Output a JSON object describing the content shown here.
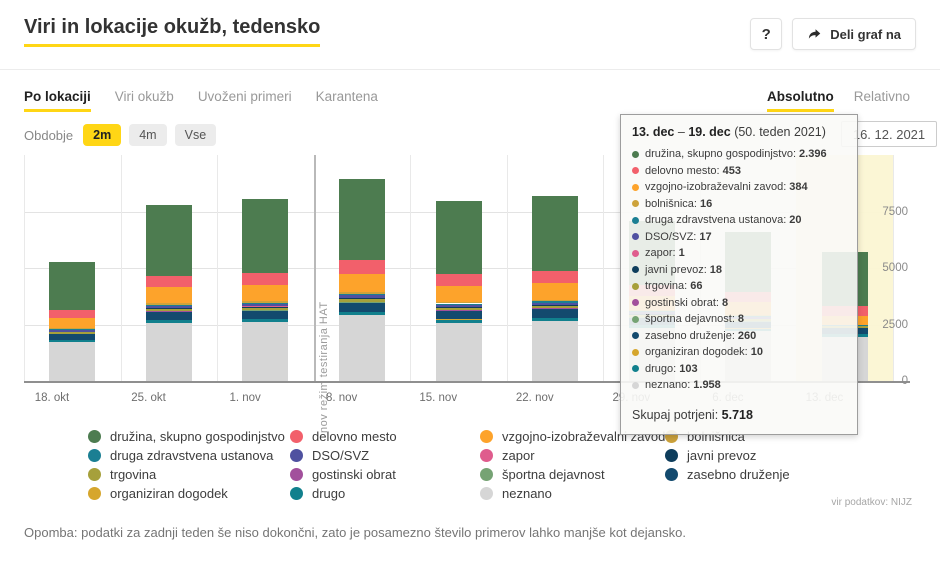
{
  "header": {
    "title": "Viri in lokacije okužb, tedensko",
    "help_label": "?",
    "share_label": "Deli graf na"
  },
  "tabs": {
    "left": [
      {
        "label": "Po lokaciji",
        "active": true
      },
      {
        "label": "Viri okužb",
        "active": false
      },
      {
        "label": "Uvoženi primeri",
        "active": false
      },
      {
        "label": "Karantena",
        "active": false
      }
    ],
    "right": [
      {
        "label": "Absolutno",
        "active": true
      },
      {
        "label": "Relativno",
        "active": false
      }
    ]
  },
  "period": {
    "label": "Obdobje",
    "options": [
      "2m",
      "4m",
      "Vse"
    ],
    "selected": "2m"
  },
  "date_input": {
    "value": "16. 12. 2021"
  },
  "accent_color": "#ffd615",
  "chart_data": {
    "type": "bar",
    "stacked": true,
    "title": "Viri in lokacije okužb, tedensko",
    "xlabel": "",
    "ylabel": "",
    "ylim": [
      0,
      10000
    ],
    "yticks": [
      0,
      2500,
      5000,
      7500
    ],
    "grid": true,
    "legend_position": "bottom",
    "categories": [
      "18. okt",
      "25. okt",
      "1. nov",
      "8. nov",
      "15. nov",
      "22. nov",
      "29. nov",
      "6. dec",
      "13. dec"
    ],
    "series_bottom_to_top": [
      {
        "name": "neznano",
        "color": "#d6d6d6",
        "values": [
          1725,
          2550,
          2600,
          2900,
          2580,
          2650,
          2350,
          2200,
          1958
        ]
      },
      {
        "name": "drugo",
        "color": "#11808d",
        "values": [
          90,
          130,
          135,
          150,
          135,
          140,
          125,
          115,
          103
        ]
      },
      {
        "name": "organiziran dogodek",
        "color": "#d6a62d",
        "values": [
          15,
          20,
          20,
          25,
          20,
          20,
          15,
          12,
          10
        ]
      },
      {
        "name": "zasebno druženje",
        "color": "#134a6e",
        "values": [
          230,
          340,
          355,
          390,
          350,
          360,
          320,
          300,
          260
        ]
      },
      {
        "name": "športna dejavnost",
        "color": "#76a374",
        "values": [
          15,
          20,
          20,
          25,
          20,
          20,
          15,
          12,
          8
        ]
      },
      {
        "name": "gostinski obrat",
        "color": "#a2509c",
        "values": [
          15,
          20,
          20,
          25,
          20,
          20,
          15,
          12,
          8
        ]
      },
      {
        "name": "trgovina",
        "color": "#a6a03b",
        "values": [
          60,
          90,
          95,
          105,
          95,
          95,
          85,
          75,
          66
        ]
      },
      {
        "name": "javni prevoz",
        "color": "#0e3d5c",
        "values": [
          30,
          45,
          50,
          55,
          50,
          50,
          40,
          35,
          18
        ]
      },
      {
        "name": "zapor",
        "color": "#df5c8d",
        "values": [
          5,
          5,
          5,
          5,
          5,
          5,
          3,
          2,
          1
        ]
      },
      {
        "name": "DSO/SVZ",
        "color": "#4f51a0",
        "values": [
          60,
          90,
          95,
          105,
          95,
          95,
          80,
          70,
          17
        ]
      },
      {
        "name": "druga zdravstvena ustanova",
        "color": "#1b7f93",
        "values": [
          40,
          60,
          60,
          70,
          60,
          65,
          50,
          40,
          20
        ]
      },
      {
        "name": "bolnišnica",
        "color": "#cda33b",
        "values": [
          45,
          65,
          70,
          75,
          65,
          70,
          55,
          45,
          16
        ]
      },
      {
        "name": "vzgojno-izobraževalni zavod",
        "color": "#fda32b",
        "values": [
          480,
          710,
          730,
          810,
          720,
          740,
          620,
          560,
          384
        ]
      },
      {
        "name": "delovno mesto",
        "color": "#f2606b",
        "values": [
          350,
          520,
          545,
          600,
          530,
          550,
          480,
          460,
          453
        ]
      },
      {
        "name": "družina, skupno gospodinjstvo",
        "color": "#4d7c50",
        "values": [
          2110,
          3135,
          3250,
          3590,
          3205,
          3300,
          2847,
          2662,
          2396
        ]
      }
    ],
    "annotation": {
      "text": "nov režim testiranja HAT",
      "boundary_index": 3
    },
    "highlight_last_slot": {
      "slot_index": 8,
      "color": "#fbf5d3"
    }
  },
  "tooltip": {
    "title_bold_from": "13. dec",
    "title_bold_to": "19. dec",
    "title_rest": "(50. teden 2021)",
    "items": [
      {
        "label": "družina, skupno gospodinjstvo",
        "value": "2.396",
        "color": "#4d7c50"
      },
      {
        "label": "delovno mesto",
        "value": "453",
        "color": "#f2606b"
      },
      {
        "label": "vzgojno-izobraževalni zavod",
        "value": "384",
        "color": "#fda32b"
      },
      {
        "label": "bolnišnica",
        "value": "16",
        "color": "#cda33b"
      },
      {
        "label": "druga zdravstvena ustanova",
        "value": "20",
        "color": "#1b7f93"
      },
      {
        "label": "DSO/SVZ",
        "value": "17",
        "color": "#4f51a0"
      },
      {
        "label": "zapor",
        "value": "1",
        "color": "#df5c8d"
      },
      {
        "label": "javni prevoz",
        "value": "18",
        "color": "#0e3d5c"
      },
      {
        "label": "trgovina",
        "value": "66",
        "color": "#a6a03b"
      },
      {
        "label": "gostinski obrat",
        "value": "8",
        "color": "#a2509c"
      },
      {
        "label": "športna dejavnost",
        "value": "8",
        "color": "#76a374"
      },
      {
        "label": "zasebno druženje",
        "value": "260",
        "color": "#134a6e"
      },
      {
        "label": "organiziran dogodek",
        "value": "10",
        "color": "#d6a62d"
      },
      {
        "label": "drugo",
        "value": "103",
        "color": "#11808d"
      },
      {
        "label": "neznano",
        "value": "1.958",
        "color": "#d6d6d6"
      }
    ],
    "total_label": "Skupaj potrjeni",
    "total_value": "5.718"
  },
  "legend": {
    "columns": [
      [
        {
          "label": "družina, skupno gospodinjstvo",
          "color": "#4d7c50"
        },
        {
          "label": "druga zdravstvena ustanova",
          "color": "#1b7f93"
        },
        {
          "label": "trgovina",
          "color": "#a6a03b"
        },
        {
          "label": "organiziran dogodek",
          "color": "#d6a62d"
        }
      ],
      [
        {
          "label": "delovno mesto",
          "color": "#f2606b"
        },
        {
          "label": "DSO/SVZ",
          "color": "#4f51a0"
        },
        {
          "label": "gostinski obrat",
          "color": "#a2509c"
        },
        {
          "label": "drugo",
          "color": "#11808d"
        }
      ],
      [
        {
          "label": "vzgojno-izobraževalni zavod",
          "color": "#fda32b"
        },
        {
          "label": "zapor",
          "color": "#df5c8d"
        },
        {
          "label": "športna dejavnost",
          "color": "#76a374"
        },
        {
          "label": "neznano",
          "color": "#d6d6d6"
        }
      ],
      [
        {
          "label": "bolnišnica",
          "color": "#cda33b"
        },
        {
          "label": "javni prevoz",
          "color": "#0e3d5c"
        },
        {
          "label": "zasebno druženje",
          "color": "#134a6e"
        }
      ]
    ]
  },
  "footer": {
    "source": "vir podatkov: NIJZ",
    "note": "Opomba: podatki za zadnji teden še niso dokončni, zato je posamezno število primerov lahko manjše kot dejansko."
  }
}
